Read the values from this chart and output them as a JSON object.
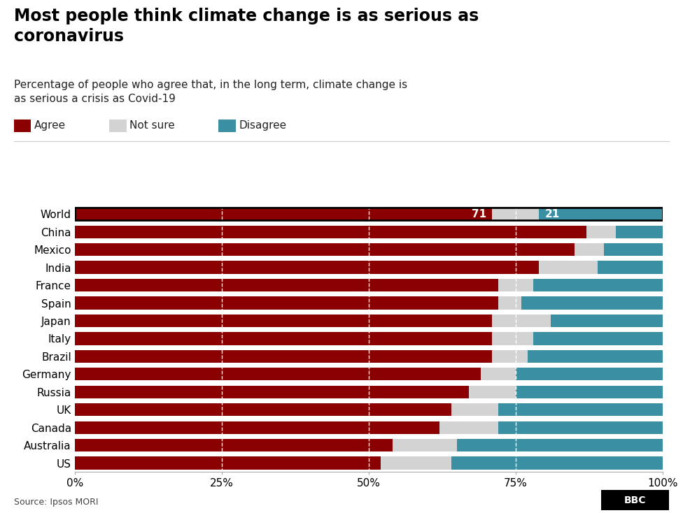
{
  "title": "Most people think climate change is as serious as\ncoronavirus",
  "subtitle": "Percentage of people who agree that, in the long term, climate change is\nas serious a crisis as Covid-19",
  "source": "Source: Ipsos MORI",
  "legend": [
    "Agree",
    "Not sure",
    "Disagree"
  ],
  "colors": {
    "agree": "#8B0000",
    "not_sure": "#D3D3D3",
    "disagree": "#3A8FA3"
  },
  "countries": [
    "World",
    "China",
    "Mexico",
    "India",
    "France",
    "Spain",
    "Japan",
    "Italy",
    "Brazil",
    "Germany",
    "Russia",
    "UK",
    "Canada",
    "Australia",
    "US"
  ],
  "agree": [
    71,
    87,
    85,
    79,
    72,
    72,
    71,
    71,
    71,
    69,
    67,
    64,
    62,
    54,
    52
  ],
  "not_sure": [
    8,
    5,
    5,
    10,
    6,
    4,
    10,
    7,
    6,
    6,
    8,
    8,
    10,
    11,
    12
  ],
  "disagree": [
    21,
    8,
    10,
    11,
    22,
    24,
    19,
    22,
    23,
    25,
    25,
    28,
    28,
    35,
    36
  ],
  "world_labels": {
    "agree_label": "71",
    "disagree_label": "21"
  },
  "xlim": [
    0,
    100
  ],
  "xticks": [
    0,
    25,
    50,
    75,
    100
  ],
  "xticklabels": [
    "0%",
    "25%",
    "50%",
    "75%",
    "100%"
  ],
  "background_color": "#FFFFFF",
  "bar_height": 0.72,
  "world_border_color": "#000000"
}
